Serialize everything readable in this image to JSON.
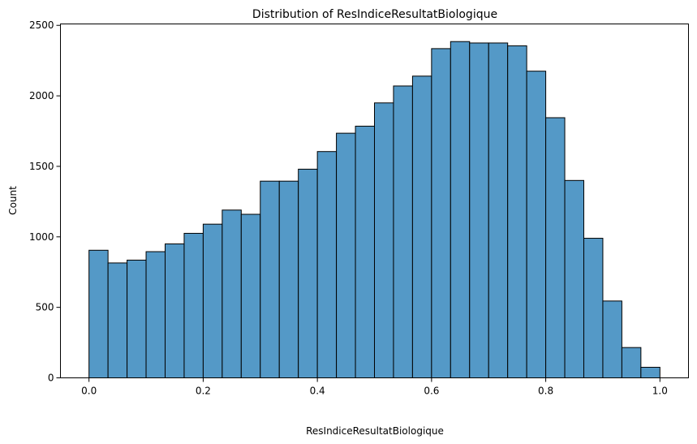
{
  "chart_data": {
    "type": "bar",
    "title": "Distribution of ResIndiceResultatBiologique",
    "xlabel": "ResIndiceResultatBiologique",
    "ylabel": "Count",
    "xlim": [
      -0.05,
      1.05
    ],
    "ylim": [
      0,
      2510
    ],
    "xticks": [
      0.0,
      0.2,
      0.4,
      0.6,
      0.8,
      1.0
    ],
    "xtick_labels": [
      "0.0",
      "0.2",
      "0.4",
      "0.6",
      "0.8",
      "1.0"
    ],
    "yticks": [
      0,
      500,
      1000,
      1500,
      2000,
      2500
    ],
    "ytick_labels": [
      "0",
      "500",
      "1000",
      "1500",
      "2000",
      "2500"
    ],
    "bin_start": 0.0,
    "bin_width": 0.0333333,
    "values": [
      905,
      815,
      835,
      895,
      950,
      1025,
      1090,
      1190,
      1160,
      1395,
      1395,
      1480,
      1605,
      1735,
      1785,
      1950,
      2070,
      2140,
      2335,
      2385,
      2375,
      2375,
      2355,
      2175,
      1845,
      1400,
      990,
      545,
      215,
      75
    ],
    "bar_color": "#5499c7",
    "grid": false,
    "legend": "none"
  }
}
